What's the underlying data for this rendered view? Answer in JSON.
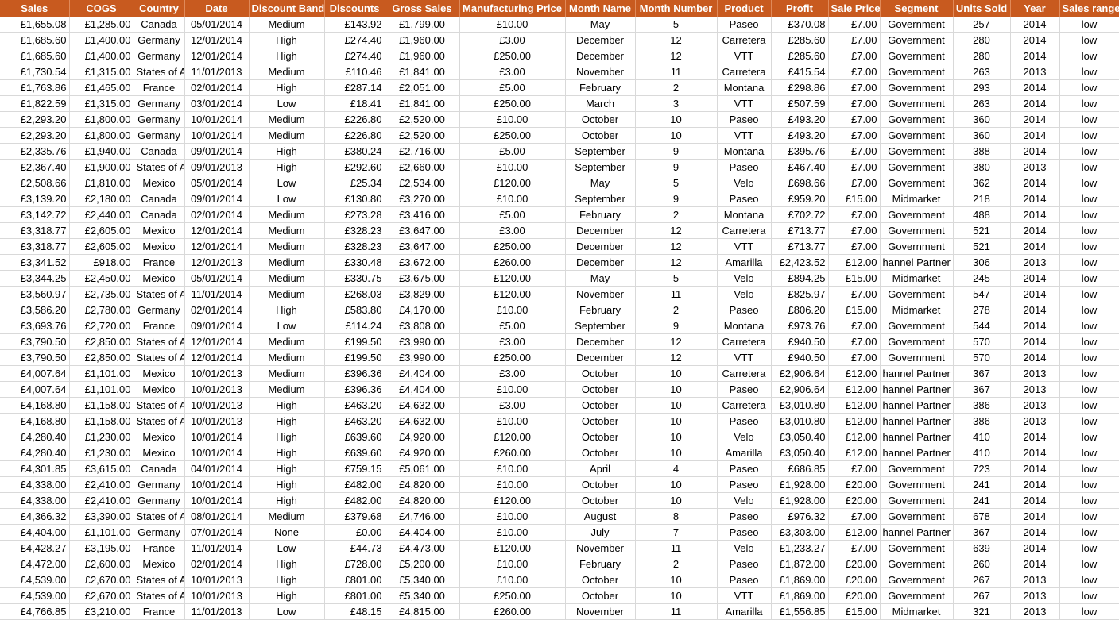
{
  "colors": {
    "header_bg": "#c85a1f",
    "header_text": "#ffffff",
    "grid": "#d9d9d9"
  },
  "columns": [
    "Sales",
    "COGS",
    "Country",
    "Date",
    "Discount Band",
    "Discounts",
    "Gross Sales",
    "Manufacturing Price",
    "Month Name",
    "Month Number",
    "Product",
    "Profit",
    "Sale Price",
    "Segment",
    "Units Sold",
    "Year",
    "Sales range"
  ],
  "rows": [
    [
      "£1,655.08",
      "£1,285.00",
      "Canada",
      "05/01/2014",
      "Medium",
      "£143.92",
      "£1,799.00",
      "£10.00",
      "May",
      "5",
      "Paseo",
      "£370.08",
      "£7.00",
      "Government",
      "257",
      "2014",
      "low"
    ],
    [
      "£1,685.60",
      "£1,400.00",
      "Germany",
      "12/01/2014",
      "High",
      "£274.40",
      "£1,960.00",
      "£3.00",
      "December",
      "12",
      "Carretera",
      "£285.60",
      "£7.00",
      "Government",
      "280",
      "2014",
      "low"
    ],
    [
      "£1,685.60",
      "£1,400.00",
      "Germany",
      "12/01/2014",
      "High",
      "£274.40",
      "£1,960.00",
      "£250.00",
      "December",
      "12",
      "VTT",
      "£285.60",
      "£7.00",
      "Government",
      "280",
      "2014",
      "low"
    ],
    [
      "£1,730.54",
      "£1,315.00",
      "States of A",
      "11/01/2013",
      "Medium",
      "£110.46",
      "£1,841.00",
      "£3.00",
      "November",
      "11",
      "Carretera",
      "£415.54",
      "£7.00",
      "Government",
      "263",
      "2013",
      "low"
    ],
    [
      "£1,763.86",
      "£1,465.00",
      "France",
      "02/01/2014",
      "High",
      "£287.14",
      "£2,051.00",
      "£5.00",
      "February",
      "2",
      "Montana",
      "£298.86",
      "£7.00",
      "Government",
      "293",
      "2014",
      "low"
    ],
    [
      "£1,822.59",
      "£1,315.00",
      "Germany",
      "03/01/2014",
      "Low",
      "£18.41",
      "£1,841.00",
      "£250.00",
      "March",
      "3",
      "VTT",
      "£507.59",
      "£7.00",
      "Government",
      "263",
      "2014",
      "low"
    ],
    [
      "£2,293.20",
      "£1,800.00",
      "Germany",
      "10/01/2014",
      "Medium",
      "£226.80",
      "£2,520.00",
      "£10.00",
      "October",
      "10",
      "Paseo",
      "£493.20",
      "£7.00",
      "Government",
      "360",
      "2014",
      "low"
    ],
    [
      "£2,293.20",
      "£1,800.00",
      "Germany",
      "10/01/2014",
      "Medium",
      "£226.80",
      "£2,520.00",
      "£250.00",
      "October",
      "10",
      "VTT",
      "£493.20",
      "£7.00",
      "Government",
      "360",
      "2014",
      "low"
    ],
    [
      "£2,335.76",
      "£1,940.00",
      "Canada",
      "09/01/2014",
      "High",
      "£380.24",
      "£2,716.00",
      "£5.00",
      "September",
      "9",
      "Montana",
      "£395.76",
      "£7.00",
      "Government",
      "388",
      "2014",
      "low"
    ],
    [
      "£2,367.40",
      "£1,900.00",
      "States of A",
      "09/01/2013",
      "High",
      "£292.60",
      "£2,660.00",
      "£10.00",
      "September",
      "9",
      "Paseo",
      "£467.40",
      "£7.00",
      "Government",
      "380",
      "2013",
      "low"
    ],
    [
      "£2,508.66",
      "£1,810.00",
      "Mexico",
      "05/01/2014",
      "Low",
      "£25.34",
      "£2,534.00",
      "£120.00",
      "May",
      "5",
      "Velo",
      "£698.66",
      "£7.00",
      "Government",
      "362",
      "2014",
      "low"
    ],
    [
      "£3,139.20",
      "£2,180.00",
      "Canada",
      "09/01/2014",
      "Low",
      "£130.80",
      "£3,270.00",
      "£10.00",
      "September",
      "9",
      "Paseo",
      "£959.20",
      "£15.00",
      "Midmarket",
      "218",
      "2014",
      "low"
    ],
    [
      "£3,142.72",
      "£2,440.00",
      "Canada",
      "02/01/2014",
      "Medium",
      "£273.28",
      "£3,416.00",
      "£5.00",
      "February",
      "2",
      "Montana",
      "£702.72",
      "£7.00",
      "Government",
      "488",
      "2014",
      "low"
    ],
    [
      "£3,318.77",
      "£2,605.00",
      "Mexico",
      "12/01/2014",
      "Medium",
      "£328.23",
      "£3,647.00",
      "£3.00",
      "December",
      "12",
      "Carretera",
      "£713.77",
      "£7.00",
      "Government",
      "521",
      "2014",
      "low"
    ],
    [
      "£3,318.77",
      "£2,605.00",
      "Mexico",
      "12/01/2014",
      "Medium",
      "£328.23",
      "£3,647.00",
      "£250.00",
      "December",
      "12",
      "VTT",
      "£713.77",
      "£7.00",
      "Government",
      "521",
      "2014",
      "low"
    ],
    [
      "£3,341.52",
      "£918.00",
      "France",
      "12/01/2013",
      "Medium",
      "£330.48",
      "£3,672.00",
      "£260.00",
      "December",
      "12",
      "Amarilla",
      "£2,423.52",
      "£12.00",
      "hannel Partner",
      "306",
      "2013",
      "low"
    ],
    [
      "£3,344.25",
      "£2,450.00",
      "Mexico",
      "05/01/2014",
      "Medium",
      "£330.75",
      "£3,675.00",
      "£120.00",
      "May",
      "5",
      "Velo",
      "£894.25",
      "£15.00",
      "Midmarket",
      "245",
      "2014",
      "low"
    ],
    [
      "£3,560.97",
      "£2,735.00",
      "States of A",
      "11/01/2014",
      "Medium",
      "£268.03",
      "£3,829.00",
      "£120.00",
      "November",
      "11",
      "Velo",
      "£825.97",
      "£7.00",
      "Government",
      "547",
      "2014",
      "low"
    ],
    [
      "£3,586.20",
      "£2,780.00",
      "Germany",
      "02/01/2014",
      "High",
      "£583.80",
      "£4,170.00",
      "£10.00",
      "February",
      "2",
      "Paseo",
      "£806.20",
      "£15.00",
      "Midmarket",
      "278",
      "2014",
      "low"
    ],
    [
      "£3,693.76",
      "£2,720.00",
      "France",
      "09/01/2014",
      "Low",
      "£114.24",
      "£3,808.00",
      "£5.00",
      "September",
      "9",
      "Montana",
      "£973.76",
      "£7.00",
      "Government",
      "544",
      "2014",
      "low"
    ],
    [
      "£3,790.50",
      "£2,850.00",
      "States of A",
      "12/01/2014",
      "Medium",
      "£199.50",
      "£3,990.00",
      "£3.00",
      "December",
      "12",
      "Carretera",
      "£940.50",
      "£7.00",
      "Government",
      "570",
      "2014",
      "low"
    ],
    [
      "£3,790.50",
      "£2,850.00",
      "States of A",
      "12/01/2014",
      "Medium",
      "£199.50",
      "£3,990.00",
      "£250.00",
      "December",
      "12",
      "VTT",
      "£940.50",
      "£7.00",
      "Government",
      "570",
      "2014",
      "low"
    ],
    [
      "£4,007.64",
      "£1,101.00",
      "Mexico",
      "10/01/2013",
      "Medium",
      "£396.36",
      "£4,404.00",
      "£3.00",
      "October",
      "10",
      "Carretera",
      "£2,906.64",
      "£12.00",
      "hannel Partner",
      "367",
      "2013",
      "low"
    ],
    [
      "£4,007.64",
      "£1,101.00",
      "Mexico",
      "10/01/2013",
      "Medium",
      "£396.36",
      "£4,404.00",
      "£10.00",
      "October",
      "10",
      "Paseo",
      "£2,906.64",
      "£12.00",
      "hannel Partner",
      "367",
      "2013",
      "low"
    ],
    [
      "£4,168.80",
      "£1,158.00",
      "States of A",
      "10/01/2013",
      "High",
      "£463.20",
      "£4,632.00",
      "£3.00",
      "October",
      "10",
      "Carretera",
      "£3,010.80",
      "£12.00",
      "hannel Partner",
      "386",
      "2013",
      "low"
    ],
    [
      "£4,168.80",
      "£1,158.00",
      "States of A",
      "10/01/2013",
      "High",
      "£463.20",
      "£4,632.00",
      "£10.00",
      "October",
      "10",
      "Paseo",
      "£3,010.80",
      "£12.00",
      "hannel Partner",
      "386",
      "2013",
      "low"
    ],
    [
      "£4,280.40",
      "£1,230.00",
      "Mexico",
      "10/01/2014",
      "High",
      "£639.60",
      "£4,920.00",
      "£120.00",
      "October",
      "10",
      "Velo",
      "£3,050.40",
      "£12.00",
      "hannel Partner",
      "410",
      "2014",
      "low"
    ],
    [
      "£4,280.40",
      "£1,230.00",
      "Mexico",
      "10/01/2014",
      "High",
      "£639.60",
      "£4,920.00",
      "£260.00",
      "October",
      "10",
      "Amarilla",
      "£3,050.40",
      "£12.00",
      "hannel Partner",
      "410",
      "2014",
      "low"
    ],
    [
      "£4,301.85",
      "£3,615.00",
      "Canada",
      "04/01/2014",
      "High",
      "£759.15",
      "£5,061.00",
      "£10.00",
      "April",
      "4",
      "Paseo",
      "£686.85",
      "£7.00",
      "Government",
      "723",
      "2014",
      "low"
    ],
    [
      "£4,338.00",
      "£2,410.00",
      "Germany",
      "10/01/2014",
      "High",
      "£482.00",
      "£4,820.00",
      "£10.00",
      "October",
      "10",
      "Paseo",
      "£1,928.00",
      "£20.00",
      "Government",
      "241",
      "2014",
      "low"
    ],
    [
      "£4,338.00",
      "£2,410.00",
      "Germany",
      "10/01/2014",
      "High",
      "£482.00",
      "£4,820.00",
      "£120.00",
      "October",
      "10",
      "Velo",
      "£1,928.00",
      "£20.00",
      "Government",
      "241",
      "2014",
      "low"
    ],
    [
      "£4,366.32",
      "£3,390.00",
      "States of A",
      "08/01/2014",
      "Medium",
      "£379.68",
      "£4,746.00",
      "£10.00",
      "August",
      "8",
      "Paseo",
      "£976.32",
      "£7.00",
      "Government",
      "678",
      "2014",
      "low"
    ],
    [
      "£4,404.00",
      "£1,101.00",
      "Germany",
      "07/01/2014",
      "None",
      "£0.00",
      "£4,404.00",
      "£10.00",
      "July",
      "7",
      "Paseo",
      "£3,303.00",
      "£12.00",
      "hannel Partner",
      "367",
      "2014",
      "low"
    ],
    [
      "£4,428.27",
      "£3,195.00",
      "France",
      "11/01/2014",
      "Low",
      "£44.73",
      "£4,473.00",
      "£120.00",
      "November",
      "11",
      "Velo",
      "£1,233.27",
      "£7.00",
      "Government",
      "639",
      "2014",
      "low"
    ],
    [
      "£4,472.00",
      "£2,600.00",
      "Mexico",
      "02/01/2014",
      "High",
      "£728.00",
      "£5,200.00",
      "£10.00",
      "February",
      "2",
      "Paseo",
      "£1,872.00",
      "£20.00",
      "Government",
      "260",
      "2014",
      "low"
    ],
    [
      "£4,539.00",
      "£2,670.00",
      "States of A",
      "10/01/2013",
      "High",
      "£801.00",
      "£5,340.00",
      "£10.00",
      "October",
      "10",
      "Paseo",
      "£1,869.00",
      "£20.00",
      "Government",
      "267",
      "2013",
      "low"
    ],
    [
      "£4,539.00",
      "£2,670.00",
      "States of A",
      "10/01/2013",
      "High",
      "£801.00",
      "£5,340.00",
      "£250.00",
      "October",
      "10",
      "VTT",
      "£1,869.00",
      "£20.00",
      "Government",
      "267",
      "2013",
      "low"
    ],
    [
      "£4,766.85",
      "£3,210.00",
      "France",
      "11/01/2013",
      "Low",
      "£48.15",
      "£4,815.00",
      "£260.00",
      "November",
      "11",
      "Amarilla",
      "£1,556.85",
      "£15.00",
      "Midmarket",
      "321",
      "2013",
      "low"
    ]
  ]
}
